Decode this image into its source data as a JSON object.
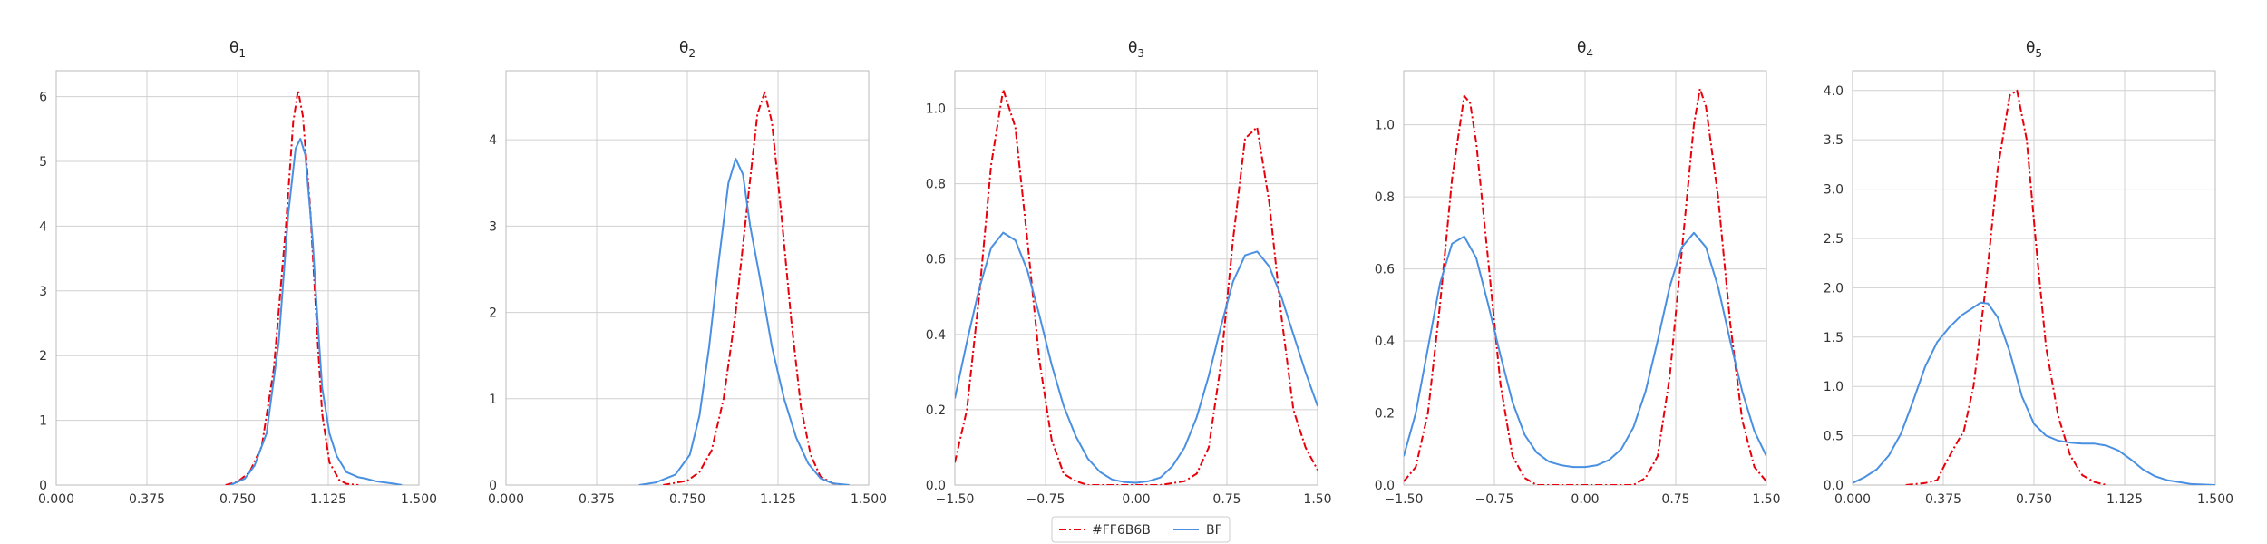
{
  "figure": {
    "legend": {
      "placement": "bottom-center",
      "entries": [
        {
          "label": "#FF6B6B",
          "color": "#e8000b",
          "dash": "dash-dot"
        },
        {
          "label": "BF",
          "color": "#4a90e2",
          "dash": "solid"
        }
      ]
    },
    "grid": true
  },
  "chart_data": [
    {
      "type": "line",
      "title_base": "θ",
      "title_sub": "1",
      "xlim": [
        0,
        1.5
      ],
      "ylim": [
        0,
        6.4
      ],
      "xticks": [
        0,
        0.375,
        0.75,
        1.125,
        1.5
      ],
      "xtick_labels": [
        "0.000",
        "0.375",
        "0.750",
        "1.125",
        "1.500"
      ],
      "yticks": [
        0,
        1,
        2,
        3,
        4,
        5,
        6
      ],
      "ytick_labels": [
        "0",
        "1",
        "2",
        "3",
        "4",
        "5",
        "6"
      ],
      "series": [
        {
          "color": "#e8000b",
          "dash": "dash-dot",
          "x": [
            0.7,
            0.75,
            0.8,
            0.85,
            0.9,
            0.95,
            0.98,
            1.0,
            1.02,
            1.05,
            1.08,
            1.1,
            1.13,
            1.17,
            1.2,
            1.25
          ],
          "y": [
            0.0,
            0.05,
            0.2,
            0.6,
            1.8,
            4.0,
            5.6,
            6.1,
            5.7,
            4.3,
            2.3,
            1.1,
            0.35,
            0.08,
            0.02,
            0.0
          ]
        },
        {
          "color": "#4a90e2",
          "dash": "solid",
          "x": [
            0.72,
            0.78,
            0.82,
            0.87,
            0.92,
            0.96,
            0.99,
            1.01,
            1.03,
            1.06,
            1.08,
            1.1,
            1.13,
            1.16,
            1.2,
            1.25,
            1.28,
            1.32,
            1.4,
            1.43
          ],
          "y": [
            0.0,
            0.1,
            0.3,
            0.8,
            2.2,
            4.2,
            5.2,
            5.35,
            5.1,
            3.8,
            2.6,
            1.5,
            0.8,
            0.45,
            0.2,
            0.12,
            0.1,
            0.06,
            0.02,
            0.0
          ]
        }
      ]
    },
    {
      "type": "line",
      "title_base": "θ",
      "title_sub": "2",
      "xlim": [
        0,
        1.5
      ],
      "ylim": [
        0,
        4.8
      ],
      "xticks": [
        0,
        0.375,
        0.75,
        1.125,
        1.5
      ],
      "xtick_labels": [
        "0.000",
        "0.375",
        "0.750",
        "1.125",
        "1.500"
      ],
      "yticks": [
        0,
        1,
        2,
        3,
        4
      ],
      "ytick_labels": [
        "0",
        "1",
        "2",
        "3",
        "4"
      ],
      "series": [
        {
          "color": "#e8000b",
          "dash": "dash-dot",
          "x": [
            0.65,
            0.75,
            0.8,
            0.85,
            0.9,
            0.95,
            1.0,
            1.04,
            1.07,
            1.1,
            1.14,
            1.18,
            1.22,
            1.26,
            1.3,
            1.35,
            1.4
          ],
          "y": [
            0.0,
            0.05,
            0.15,
            0.4,
            1.0,
            2.0,
            3.3,
            4.3,
            4.55,
            4.2,
            3.1,
            1.9,
            0.9,
            0.35,
            0.1,
            0.02,
            0.0
          ]
        },
        {
          "color": "#4a90e2",
          "dash": "solid",
          "x": [
            0.55,
            0.62,
            0.7,
            0.76,
            0.8,
            0.84,
            0.88,
            0.92,
            0.95,
            0.98,
            1.01,
            1.05,
            1.1,
            1.15,
            1.2,
            1.25,
            1.3,
            1.35,
            1.42
          ],
          "y": [
            0.0,
            0.03,
            0.12,
            0.35,
            0.8,
            1.6,
            2.6,
            3.5,
            3.78,
            3.6,
            3.0,
            2.4,
            1.6,
            1.0,
            0.55,
            0.25,
            0.08,
            0.02,
            0.0
          ]
        }
      ]
    },
    {
      "type": "line",
      "title_base": "θ",
      "title_sub": "3",
      "xlim": [
        -1.5,
        1.5
      ],
      "ylim": [
        0,
        1.1
      ],
      "xticks": [
        -1.5,
        -0.75,
        0,
        0.75,
        1.5
      ],
      "xtick_labels": [
        "−1.50",
        "−0.75",
        "0.00",
        "0.75",
        "1.50"
      ],
      "yticks": [
        0,
        0.2,
        0.4,
        0.6,
        0.8,
        1.0
      ],
      "ytick_labels": [
        "0.0",
        "0.2",
        "0.4",
        "0.6",
        "0.8",
        "1.0"
      ],
      "series": [
        {
          "color": "#e8000b",
          "dash": "dash-dot",
          "x": [
            -1.5,
            -1.4,
            -1.3,
            -1.2,
            -1.1,
            -1.0,
            -0.9,
            -0.8,
            -0.7,
            -0.6,
            -0.5,
            -0.4,
            -0.3,
            -0.2,
            0.0,
            0.2,
            0.4,
            0.5,
            0.6,
            0.7,
            0.8,
            0.9,
            1.0,
            1.1,
            1.2,
            1.3,
            1.4,
            1.5
          ],
          "y": [
            0.06,
            0.2,
            0.5,
            0.85,
            1.05,
            0.95,
            0.65,
            0.33,
            0.12,
            0.03,
            0.01,
            0.0,
            0.0,
            0.0,
            0.0,
            0.0,
            0.01,
            0.03,
            0.1,
            0.32,
            0.65,
            0.92,
            0.95,
            0.75,
            0.45,
            0.2,
            0.1,
            0.04
          ]
        },
        {
          "color": "#4a90e2",
          "dash": "solid",
          "x": [
            -1.5,
            -1.4,
            -1.3,
            -1.2,
            -1.1,
            -1.0,
            -0.9,
            -0.8,
            -0.7,
            -0.6,
            -0.5,
            -0.4,
            -0.3,
            -0.2,
            -0.1,
            0.0,
            0.1,
            0.2,
            0.3,
            0.4,
            0.5,
            0.6,
            0.7,
            0.8,
            0.9,
            1.0,
            1.1,
            1.2,
            1.3,
            1.4,
            1.5
          ],
          "y": [
            0.23,
            0.38,
            0.52,
            0.63,
            0.67,
            0.65,
            0.57,
            0.45,
            0.32,
            0.21,
            0.13,
            0.07,
            0.035,
            0.015,
            0.008,
            0.006,
            0.01,
            0.02,
            0.05,
            0.1,
            0.18,
            0.29,
            0.42,
            0.54,
            0.61,
            0.62,
            0.58,
            0.5,
            0.4,
            0.3,
            0.21
          ]
        }
      ]
    },
    {
      "type": "line",
      "title_base": "θ",
      "title_sub": "4",
      "xlim": [
        -1.5,
        1.5
      ],
      "ylim": [
        0,
        1.15
      ],
      "xticks": [
        -1.5,
        -0.75,
        0,
        0.75,
        1.5
      ],
      "xtick_labels": [
        "−1.50",
        "−0.75",
        "0.00",
        "0.75",
        "1.50"
      ],
      "yticks": [
        0,
        0.2,
        0.4,
        0.6,
        0.8,
        1.0
      ],
      "ytick_labels": [
        "0.0",
        "0.2",
        "0.4",
        "0.6",
        "0.8",
        "1.0"
      ],
      "series": [
        {
          "color": "#e8000b",
          "dash": "dash-dot",
          "x": [
            -1.5,
            -1.4,
            -1.3,
            -1.2,
            -1.1,
            -1.0,
            -0.95,
            -0.9,
            -0.8,
            -0.7,
            -0.6,
            -0.5,
            -0.4,
            -0.2,
            0.0,
            0.2,
            0.4,
            0.5,
            0.6,
            0.7,
            0.8,
            0.9,
            0.95,
            1.0,
            1.1,
            1.2,
            1.3,
            1.4,
            1.5
          ],
          "y": [
            0.01,
            0.05,
            0.2,
            0.5,
            0.85,
            1.08,
            1.06,
            0.95,
            0.62,
            0.28,
            0.08,
            0.02,
            0.0,
            0.0,
            0.0,
            0.0,
            0.0,
            0.02,
            0.08,
            0.3,
            0.65,
            1.0,
            1.1,
            1.05,
            0.8,
            0.45,
            0.18,
            0.05,
            0.01
          ]
        },
        {
          "color": "#4a90e2",
          "dash": "solid",
          "x": [
            -1.5,
            -1.4,
            -1.3,
            -1.2,
            -1.1,
            -1.0,
            -0.9,
            -0.8,
            -0.7,
            -0.6,
            -0.5,
            -0.4,
            -0.3,
            -0.2,
            -0.1,
            0.0,
            0.1,
            0.2,
            0.3,
            0.4,
            0.5,
            0.6,
            0.7,
            0.8,
            0.9,
            1.0,
            1.1,
            1.2,
            1.3,
            1.4,
            1.5
          ],
          "y": [
            0.08,
            0.2,
            0.38,
            0.56,
            0.67,
            0.69,
            0.63,
            0.5,
            0.36,
            0.23,
            0.14,
            0.09,
            0.065,
            0.055,
            0.05,
            0.05,
            0.055,
            0.07,
            0.1,
            0.16,
            0.26,
            0.4,
            0.55,
            0.66,
            0.7,
            0.66,
            0.55,
            0.4,
            0.26,
            0.15,
            0.08
          ]
        }
      ]
    },
    {
      "type": "line",
      "title_base": "θ",
      "title_sub": "5",
      "xlim": [
        0,
        1.5
      ],
      "ylim": [
        0,
        4.2
      ],
      "xticks": [
        0,
        0.375,
        0.75,
        1.125,
        1.5
      ],
      "xtick_labels": [
        "0.000",
        "0.375",
        "0.750",
        "1.125",
        "1.500"
      ],
      "yticks": [
        0,
        0.5,
        1.0,
        1.5,
        2.0,
        2.5,
        3.0,
        3.5,
        4.0
      ],
      "ytick_labels": [
        "0.0",
        "0.5",
        "1.0",
        "1.5",
        "2.0",
        "2.5",
        "3.0",
        "3.5",
        "4.0"
      ],
      "series": [
        {
          "color": "#e8000b",
          "dash": "dash-dot",
          "x": [
            0.22,
            0.3,
            0.35,
            0.38,
            0.42,
            0.46,
            0.5,
            0.55,
            0.6,
            0.65,
            0.68,
            0.72,
            0.76,
            0.8,
            0.85,
            0.9,
            0.95,
            1.0,
            1.05
          ],
          "y": [
            0.0,
            0.02,
            0.05,
            0.2,
            0.38,
            0.55,
            1.0,
            2.0,
            3.2,
            3.95,
            4.0,
            3.5,
            2.4,
            1.4,
            0.7,
            0.3,
            0.1,
            0.03,
            0.0
          ]
        },
        {
          "color": "#4a90e2",
          "dash": "solid",
          "x": [
            0.0,
            0.05,
            0.1,
            0.15,
            0.2,
            0.25,
            0.3,
            0.35,
            0.4,
            0.45,
            0.5,
            0.53,
            0.56,
            0.6,
            0.65,
            0.7,
            0.75,
            0.8,
            0.85,
            0.9,
            0.95,
            1.0,
            1.05,
            1.1,
            1.15,
            1.2,
            1.25,
            1.3,
            1.35,
            1.4,
            1.5
          ],
          "y": [
            0.02,
            0.08,
            0.16,
            0.3,
            0.52,
            0.85,
            1.2,
            1.45,
            1.6,
            1.72,
            1.8,
            1.85,
            1.84,
            1.7,
            1.35,
            0.9,
            0.62,
            0.5,
            0.45,
            0.43,
            0.42,
            0.42,
            0.4,
            0.35,
            0.26,
            0.16,
            0.09,
            0.05,
            0.03,
            0.01,
            0.0
          ]
        }
      ]
    }
  ]
}
